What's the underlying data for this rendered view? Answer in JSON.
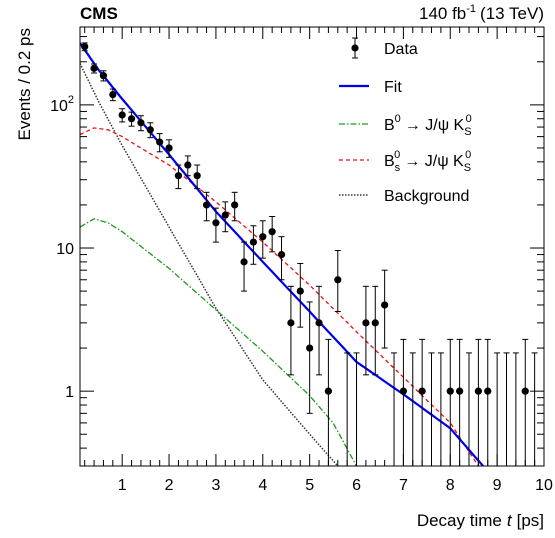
{
  "chart_data": {
    "type": "scatter",
    "experiment_label": "CMS",
    "lumi_label": {
      "value": "140 fb",
      "superscript": "-1",
      "suffix": "(13 TeV)"
    },
    "xlabel": {
      "text": "Decay time",
      "variable": "t",
      "unit": "[ps]"
    },
    "ylabel": "Events / 0.2 ps",
    "xlim": [
      0.1,
      10
    ],
    "ylim": [
      0.3,
      350
    ],
    "y_scale": "log",
    "x_ticks": [
      1,
      2,
      3,
      4,
      5,
      6,
      7,
      8,
      9,
      10
    ],
    "x_tick_labels": [
      "1",
      "2",
      "3",
      "4",
      "5",
      "6",
      "7",
      "8",
      "9",
      "10"
    ],
    "y_ticks": [
      1,
      10,
      100
    ],
    "y_tick_labels": [
      "1",
      "10",
      "10^2"
    ],
    "legend": {
      "placement": "top-right",
      "entries": [
        {
          "key": "data",
          "label": "Data",
          "style": "marker"
        },
        {
          "key": "fit",
          "label": "Fit",
          "style": "solid",
          "color": "#0000ee"
        },
        {
          "key": "b0",
          "label": "B0 → J/ψ KS0",
          "style": "dashdot",
          "color": "#1a9a1a"
        },
        {
          "key": "bs",
          "label": "Bs0 → J/ψ KS0",
          "style": "dashed",
          "color": "#ee1111"
        },
        {
          "key": "bkg",
          "label": "Background",
          "style": "dotted",
          "color": "#333333"
        }
      ]
    },
    "legend_symbols": {
      "arrow": "→",
      "psi": "ψ",
      "sup0": "0",
      "subS": "S",
      "subs": "s"
    },
    "data_points": [
      {
        "x": 0.2,
        "y": 255,
        "lo": 16,
        "hi": 16
      },
      {
        "x": 0.4,
        "y": 180,
        "lo": 13,
        "hi": 13
      },
      {
        "x": 0.6,
        "y": 160,
        "lo": 13,
        "hi": 13
      },
      {
        "x": 0.8,
        "y": 118,
        "lo": 11,
        "hi": 11
      },
      {
        "x": 1.0,
        "y": 85,
        "lo": 9,
        "hi": 9
      },
      {
        "x": 1.2,
        "y": 80,
        "lo": 9,
        "hi": 9
      },
      {
        "x": 1.4,
        "y": 75,
        "lo": 9,
        "hi": 9
      },
      {
        "x": 1.6,
        "y": 67,
        "lo": 8,
        "hi": 8
      },
      {
        "x": 1.8,
        "y": 55,
        "lo": 8,
        "hi": 8
      },
      {
        "x": 2.0,
        "y": 50,
        "lo": 7,
        "hi": 7
      },
      {
        "x": 2.2,
        "y": 32,
        "lo": 6,
        "hi": 6
      },
      {
        "x": 2.4,
        "y": 38,
        "lo": 6,
        "hi": 6
      },
      {
        "x": 2.6,
        "y": 32,
        "lo": 6,
        "hi": 6
      },
      {
        "x": 2.8,
        "y": 20,
        "lo": 4.5,
        "hi": 4.5
      },
      {
        "x": 3.0,
        "y": 15,
        "lo": 4,
        "hi": 4
      },
      {
        "x": 3.2,
        "y": 17,
        "lo": 4,
        "hi": 4
      },
      {
        "x": 3.4,
        "y": 20,
        "lo": 4.5,
        "hi": 4.5
      },
      {
        "x": 3.6,
        "y": 8,
        "lo": 3,
        "hi": 3
      },
      {
        "x": 3.8,
        "y": 11,
        "lo": 3.3,
        "hi": 3.3
      },
      {
        "x": 4.0,
        "y": 12,
        "lo": 3.5,
        "hi": 3.5
      },
      {
        "x": 4.2,
        "y": 13,
        "lo": 3.6,
        "hi": 3.6
      },
      {
        "x": 4.4,
        "y": 9,
        "lo": 3,
        "hi": 3
      },
      {
        "x": 4.6,
        "y": 3,
        "lo": 1.7,
        "hi": 2.4
      },
      {
        "x": 4.8,
        "y": 5,
        "lo": 2.2,
        "hi": 2.8
      },
      {
        "x": 5.0,
        "y": 2,
        "lo": 1.3,
        "hi": 2.2
      },
      {
        "x": 5.2,
        "y": 3,
        "lo": 1.7,
        "hi": 2.4
      },
      {
        "x": 5.4,
        "y": 1,
        "lo": 0.83,
        "hi": 1.3
      },
      {
        "x": 5.6,
        "y": 6,
        "lo": 2.4,
        "hi": 3.6
      },
      {
        "x": 6.2,
        "y": 3,
        "lo": 1.7,
        "hi": 2.4
      },
      {
        "x": 6.4,
        "y": 3,
        "lo": 1.7,
        "hi": 2.4
      },
      {
        "x": 6.6,
        "y": 4,
        "lo": 2,
        "hi": 3
      },
      {
        "x": 7.0,
        "y": 1,
        "lo": 0.83,
        "hi": 1.3
      },
      {
        "x": 7.4,
        "y": 1,
        "lo": 0.83,
        "hi": 1.3
      },
      {
        "x": 8.0,
        "y": 1,
        "lo": 0.83,
        "hi": 1.3
      },
      {
        "x": 8.2,
        "y": 1,
        "lo": 0.83,
        "hi": 1.3
      },
      {
        "x": 8.6,
        "y": 1,
        "lo": 0.83,
        "hi": 1.3
      },
      {
        "x": 8.8,
        "y": 1,
        "lo": 0.83,
        "hi": 1.3
      },
      {
        "x": 9.6,
        "y": 1,
        "lo": 0.83,
        "hi": 1.3
      }
    ],
    "empty_bin_upper_limits": {
      "y_top": 1.85,
      "x": [
        5.8,
        6.0,
        6.8,
        7.2,
        7.6,
        7.8,
        8.4,
        9.0,
        9.2,
        9.4,
        9.8
      ]
    },
    "curves": {
      "fit": [
        [
          0.1,
          270
        ],
        [
          0.5,
          175
        ],
        [
          1.0,
          110
        ],
        [
          2.0,
          45
        ],
        [
          3.0,
          18
        ],
        [
          4.0,
          8
        ],
        [
          5.0,
          3.6
        ],
        [
          6.0,
          1.6
        ],
        [
          7.0,
          0.95
        ],
        [
          8.0,
          0.55
        ],
        [
          8.7,
          0.3
        ]
      ],
      "bs": [
        [
          0.1,
          62
        ],
        [
          0.4,
          69
        ],
        [
          0.7,
          67
        ],
        [
          1.0,
          60
        ],
        [
          2.0,
          38
        ],
        [
          3.0,
          21
        ],
        [
          4.0,
          11
        ],
        [
          5.0,
          5.5
        ],
        [
          6.0,
          2.6
        ],
        [
          7.0,
          1.25
        ],
        [
          8.0,
          0.6
        ],
        [
          8.6,
          0.3
        ]
      ],
      "b0": [
        [
          0.1,
          14
        ],
        [
          0.4,
          16
        ],
        [
          0.7,
          15
        ],
        [
          1.0,
          13
        ],
        [
          2.0,
          7.2
        ],
        [
          3.0,
          3.7
        ],
        [
          4.0,
          1.9
        ],
        [
          5.0,
          0.93
        ],
        [
          5.5,
          0.6
        ],
        [
          6.0,
          0.3
        ]
      ],
      "bkg": [
        [
          0.1,
          195
        ],
        [
          0.5,
          105
        ],
        [
          1.0,
          52
        ],
        [
          2.0,
          14
        ],
        [
          3.0,
          3.8
        ],
        [
          4.0,
          1.2
        ],
        [
          5.0,
          0.5
        ],
        [
          5.6,
          0.3
        ]
      ]
    },
    "grid": false
  }
}
